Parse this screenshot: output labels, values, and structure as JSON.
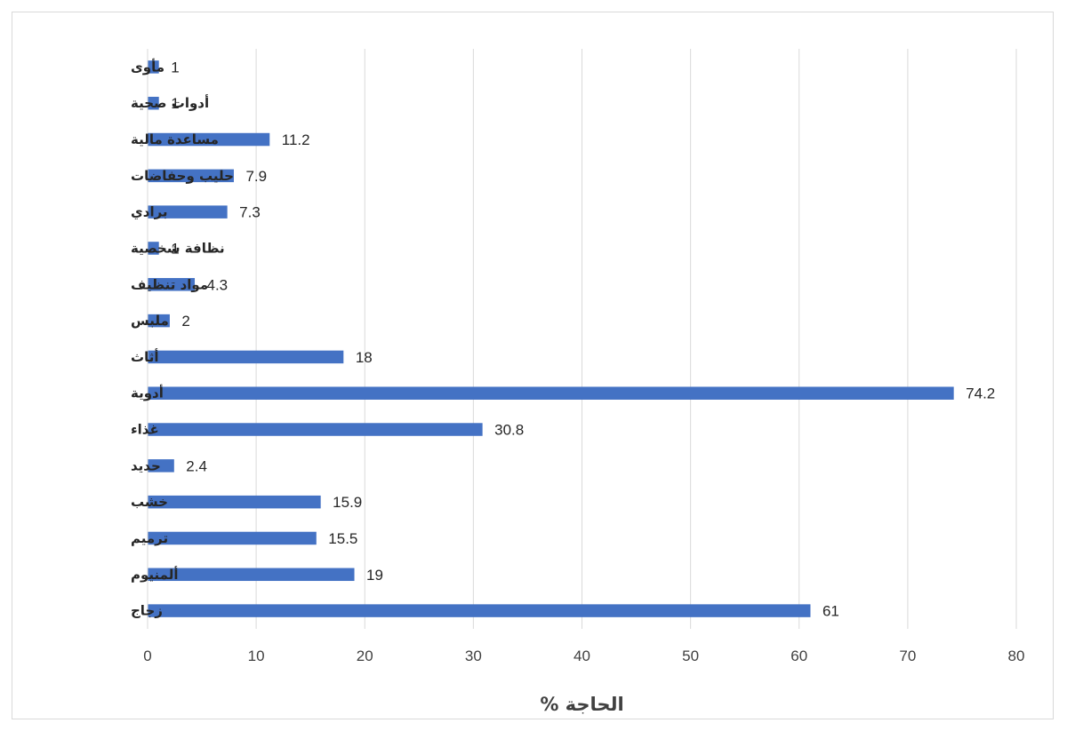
{
  "chart_data": {
    "type": "bar",
    "orientation": "horizontal",
    "categories": [
      "مأوى",
      "أدوات صحية",
      "مساعدة مالية",
      "حليب وحفاضات",
      "برادي",
      "نظافة شخصية",
      "مواد تنظيف",
      "ملبس",
      "أثاث",
      "أدوية",
      "غذاء",
      "حديد",
      "خشب",
      "ترميم",
      "ألمنيوم",
      "زجاج"
    ],
    "values": [
      1,
      1,
      11.2,
      7.9,
      7.3,
      1,
      4.3,
      2,
      18,
      74.2,
      30.8,
      2.4,
      15.9,
      15.5,
      19,
      61
    ],
    "data_labels": [
      "1",
      "1",
      "11.2",
      "7.9",
      "7.3",
      "1",
      "4.3",
      "2",
      "18",
      "74.2",
      "30.8",
      "2.4",
      "15.9",
      "15.5",
      "19",
      "61"
    ],
    "xlabel": "الحاجة %",
    "xlim": [
      0,
      80
    ],
    "xticks": [
      "0",
      "10",
      "20",
      "30",
      "40",
      "50",
      "60",
      "70",
      "80"
    ],
    "grid": "vertical",
    "legend": "none",
    "bar_color": "#4472c4",
    "grid_color": "#d9d9d9"
  }
}
